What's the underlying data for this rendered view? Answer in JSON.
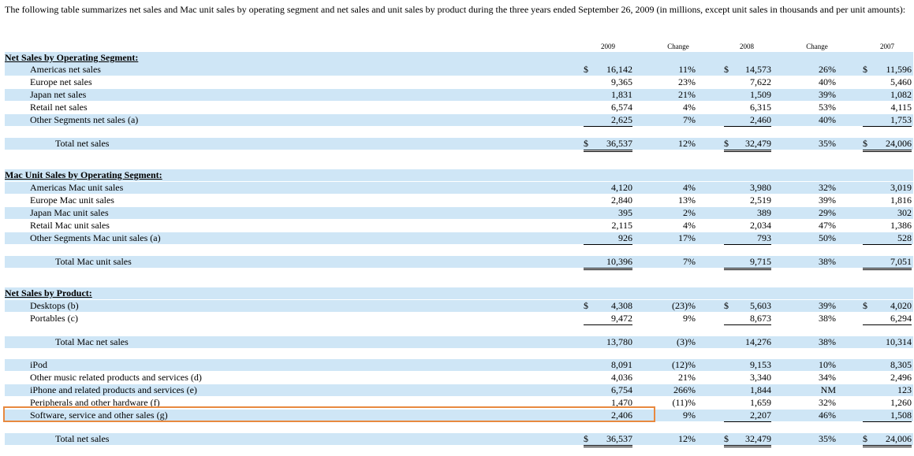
{
  "intro": "The following table summarizes net sales and Mac unit sales by operating segment and net sales and unit sales by product during the three years ended September 26, 2009 (in millions, except unit sales in thousands and per unit amounts):",
  "columns": [
    "2009",
    "Change",
    "2008",
    "Change",
    "2007"
  ],
  "rows": [
    {
      "kind": "section",
      "label": "Net Sales by Operating Segment:"
    },
    {
      "kind": "item",
      "label": "Americas net sales",
      "dollar": true,
      "v2009": "16,142",
      "c1": "11%",
      "v2008": "14,573",
      "c2": "26%",
      "v2007": "11,596"
    },
    {
      "kind": "item",
      "label": "Europe net sales",
      "v2009": "9,365",
      "c1": "23%",
      "v2008": "7,622",
      "c2": "40%",
      "v2007": "5,460"
    },
    {
      "kind": "item",
      "label": "Japan net sales",
      "v2009": "1,831",
      "c1": "21%",
      "v2008": "1,509",
      "c2": "39%",
      "v2007": "1,082"
    },
    {
      "kind": "item",
      "label": "Retail net sales",
      "v2009": "6,574",
      "c1": "4%",
      "v2008": "6,315",
      "c2": "53%",
      "v2007": "4,115"
    },
    {
      "kind": "item",
      "label": "Other Segments net sales (a)",
      "ul": "single",
      "v2009": "2,625",
      "c1": "7%",
      "v2008": "2,460",
      "c2": "40%",
      "v2007": "1,753"
    },
    {
      "kind": "total",
      "label": "Total net sales",
      "dollar": true,
      "ul": "double",
      "v2009": "36,537",
      "c1": "12%",
      "v2008": "32,479",
      "c2": "35%",
      "v2007": "24,006"
    },
    {
      "kind": "section",
      "label": "Mac Unit Sales by Operating Segment:"
    },
    {
      "kind": "item",
      "label": "Americas Mac unit sales",
      "v2009": "4,120",
      "c1": "4%",
      "v2008": "3,980",
      "c2": "32%",
      "v2007": "3,019"
    },
    {
      "kind": "item",
      "label": "Europe Mac unit sales",
      "v2009": "2,840",
      "c1": "13%",
      "v2008": "2,519",
      "c2": "39%",
      "v2007": "1,816"
    },
    {
      "kind": "item",
      "label": "Japan Mac unit sales",
      "v2009": "395",
      "c1": "2%",
      "v2008": "389",
      "c2": "29%",
      "v2007": "302"
    },
    {
      "kind": "item",
      "label": "Retail Mac unit sales",
      "v2009": "2,115",
      "c1": "4%",
      "v2008": "2,034",
      "c2": "47%",
      "v2007": "1,386"
    },
    {
      "kind": "item",
      "label": "Other Segments Mac unit sales (a)",
      "ul": "single",
      "v2009": "926",
      "c1": "17%",
      "v2008": "793",
      "c2": "50%",
      "v2007": "528"
    },
    {
      "kind": "total",
      "label": "Total Mac unit sales",
      "ul": "double",
      "v2009": "10,396",
      "c1": "7%",
      "v2008": "9,715",
      "c2": "38%",
      "v2007": "7,051"
    },
    {
      "kind": "section",
      "label": "Net Sales by Product:"
    },
    {
      "kind": "item",
      "label": "Desktops (b)",
      "dollar": true,
      "v2009": "4,308",
      "c1": "(23)%",
      "v2008": "5,603",
      "c2": "39%",
      "v2007": "4,020"
    },
    {
      "kind": "item",
      "label": "Portables (c)",
      "ul": "single",
      "v2009": "9,472",
      "c1": "9%",
      "v2008": "8,673",
      "c2": "38%",
      "v2007": "6,294"
    },
    {
      "kind": "total",
      "label": "Total Mac net sales",
      "v2009": "13,780",
      "c1": "(3)%",
      "v2008": "14,276",
      "c2": "38%",
      "v2007": "10,314"
    },
    {
      "kind": "item",
      "label": "iPod",
      "v2009": "8,091",
      "c1": "(12)%",
      "v2008": "9,153",
      "c2": "10%",
      "v2007": "8,305"
    },
    {
      "kind": "item",
      "label": "Other music related products and services (d)",
      "v2009": "4,036",
      "c1": "21%",
      "v2008": "3,340",
      "c2": "34%",
      "v2007": "2,496"
    },
    {
      "kind": "item",
      "label": "iPhone and related products and services (e)",
      "v2009": "6,754",
      "c1": "266%",
      "v2008": "1,844",
      "c2": "NM",
      "v2007": "123"
    },
    {
      "kind": "item",
      "label": "Peripherals and other hardware (f)",
      "v2009": "1,470",
      "c1": "(11)%",
      "v2008": "1,659",
      "c2": "32%",
      "v2007": "1,260"
    },
    {
      "kind": "item",
      "label": "Software, service and other sales (g)",
      "ul": "single",
      "v2009": "2,406",
      "c1": "9%",
      "v2008": "2,207",
      "c2": "46%",
      "v2007": "1,508"
    },
    {
      "kind": "total",
      "label": "Total net sales",
      "dollar": true,
      "ul": "double",
      "v2009": "36,537",
      "c1": "12%",
      "v2008": "32,479",
      "c2": "35%",
      "v2007": "24,006"
    }
  ]
}
